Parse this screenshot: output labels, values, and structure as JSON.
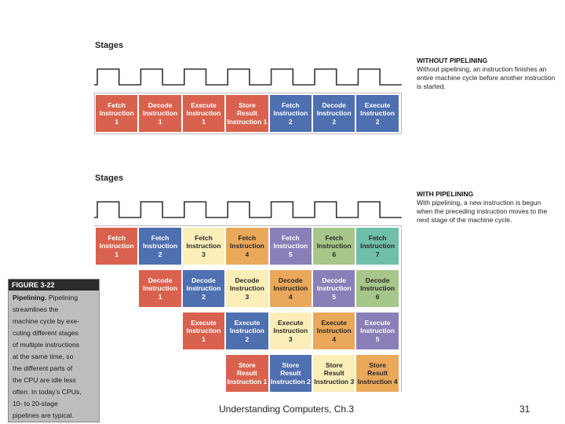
{
  "top": {
    "stages_label": "Stages",
    "note_title": "WITHOUT PIPELINING",
    "note_body": "Without pipelining, an instruction finishes an entire machine cycle before another instruction is started.",
    "cells": [
      {
        "text": "Fetch\nInstruction\n1",
        "color": "red"
      },
      {
        "text": "Decode\nInstruction\n1",
        "color": "red"
      },
      {
        "text": "Execute\nInstruction\n1",
        "color": "red"
      },
      {
        "text": "Store\nResult\nInstruction 1",
        "color": "red"
      },
      {
        "text": "Fetch\nInstruction\n2",
        "color": "blue"
      },
      {
        "text": "Decode\nInstruction\n2",
        "color": "blue"
      },
      {
        "text": "Execute\nInstruction\n2",
        "color": "blue"
      }
    ]
  },
  "bottom": {
    "stages_label": "Stages",
    "note_title": "WITH PIPELINING",
    "note_body": "With pipelining, a new instruction is begun when the preceding instruction moves to the next stage of the machine cycle.",
    "rows": [
      [
        {
          "text": "Fetch\nInstruction\n1",
          "color": "red"
        },
        {
          "text": "Fetch\nInstruction\n2",
          "color": "blue"
        },
        {
          "text": "Fetch\nInstruction\n3",
          "color": "cream"
        },
        {
          "text": "Fetch\nInstruction\n4",
          "color": "orange"
        },
        {
          "text": "Fetch\nInstruction\n5",
          "color": "purple"
        },
        {
          "text": "Fetch\nInstruction\n6",
          "color": "green"
        },
        {
          "text": "Fetch\nInstruction\n7",
          "color": "teal"
        }
      ],
      [
        {
          "text": "Decode\nInstruction\n1",
          "color": "red"
        },
        {
          "text": "Decode\nInstruction\n2",
          "color": "blue"
        },
        {
          "text": "Decode\nInstruction\n3",
          "color": "cream"
        },
        {
          "text": "Decode\nInstruction\n4",
          "color": "orange"
        },
        {
          "text": "Decode\nInstruction\n5",
          "color": "purple"
        },
        {
          "text": "Decode\nInstruction\n6",
          "color": "green"
        }
      ],
      [
        {
          "text": "Execute\nInstruction\n1",
          "color": "red"
        },
        {
          "text": "Execute\nInstruction\n2",
          "color": "blue"
        },
        {
          "text": "Execute\nInstruction\n3",
          "color": "cream"
        },
        {
          "text": "Execute\nInstruction\n4",
          "color": "orange"
        },
        {
          "text": "Execute\nInstruction\n5",
          "color": "purple"
        }
      ],
      [
        {
          "text": "Store\nResult\nInstruction 1",
          "color": "red"
        },
        {
          "text": "Store\nResult\nInstruction 2",
          "color": "blue"
        },
        {
          "text": "Store\nResult\nInstruction 3",
          "color": "cream"
        },
        {
          "text": "Store\nResult\nInstruction 4",
          "color": "orange"
        }
      ]
    ]
  },
  "figure": {
    "label": "FIGURE 3-22",
    "title": "Pipelining.",
    "lines": [
      "Pipelining",
      "streamlines the",
      "machine cycle by exe-",
      "cuting different stages",
      "of multiple instructions",
      "at the same time, so",
      "the different parts of",
      "the CPU are idle less",
      "often. In today's CPUs,",
      "10- to 20-stage",
      "pipelines are typical."
    ]
  },
  "footer": {
    "caption": "Understanding Computers, Ch.3",
    "page_number": "31"
  },
  "colors": {
    "red": "#d9624f",
    "blue": "#4e6fb0",
    "cream": "#fbeeb8",
    "orange": "#eaa85a",
    "purple": "#8a7fb8",
    "green": "#a7c68a",
    "teal": "#6fbfaa"
  }
}
